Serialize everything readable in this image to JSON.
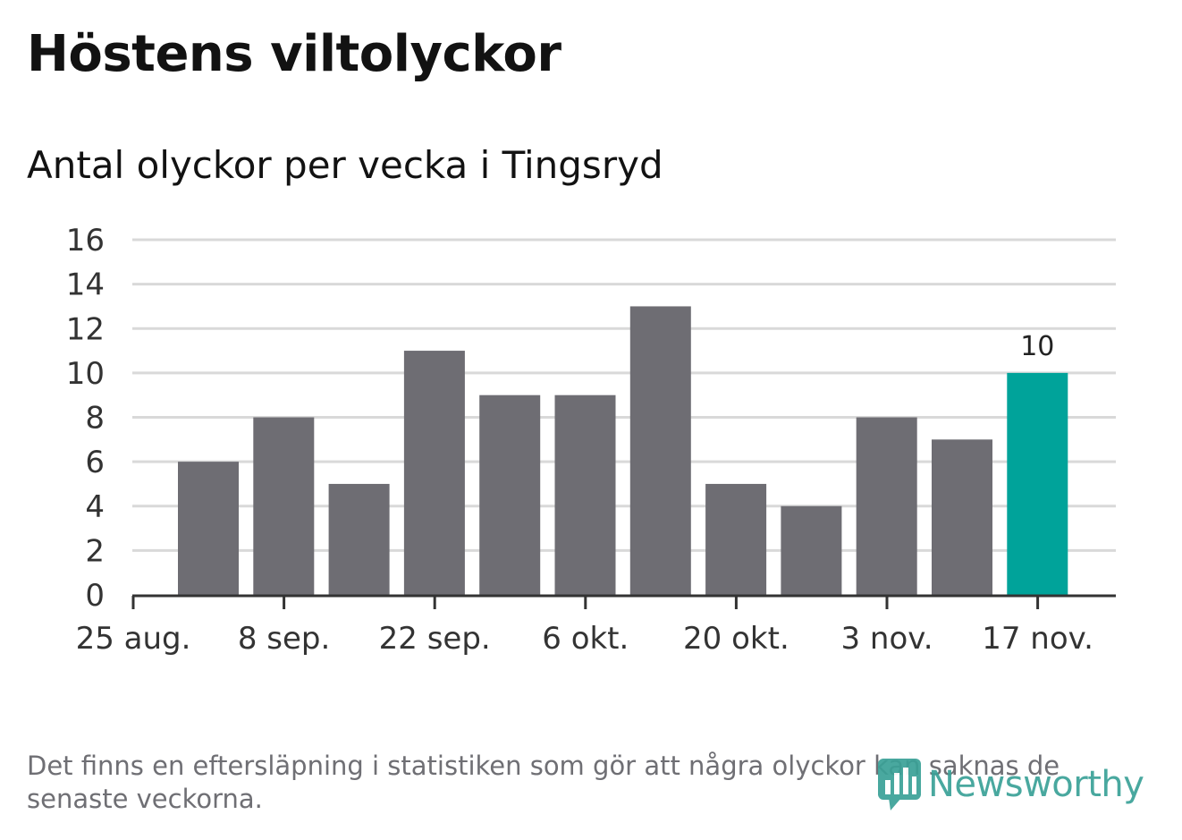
{
  "header": {
    "title": "Höstens viltolyckor",
    "subtitle": "Antal olyckor per vecka i Tingsryd"
  },
  "footer": {
    "note": "Det finns en eftersläpning i statistiken som gör att några olyckor kan saknas de senaste veckorna.",
    "logo_text": "Newsworthy"
  },
  "colors": {
    "bar": "#6e6d73",
    "highlight": "#00a39a",
    "grid": "#d9d9d9",
    "axis": "#333333",
    "logo": "#3aa197"
  },
  "chart_data": {
    "type": "bar",
    "title": "Höstens viltolyckor",
    "subtitle": "Antal olyckor per vecka i Tingsryd",
    "xlabel": "",
    "ylabel": "",
    "ylim": [
      0,
      16
    ],
    "y_ticks": [
      0,
      2,
      4,
      6,
      8,
      10,
      12,
      14,
      16
    ],
    "grid": true,
    "x_tick_labels": [
      "25 aug.",
      "8 sep.",
      "22 sep.",
      "6 okt.",
      "20 okt.",
      "3 nov.",
      "17 nov."
    ],
    "values": [
      6,
      8,
      5,
      11,
      9,
      9,
      13,
      5,
      4,
      8,
      7,
      10
    ],
    "highlight_index": 11,
    "data_labels": [
      {
        "index": 11,
        "text": "10"
      }
    ]
  }
}
